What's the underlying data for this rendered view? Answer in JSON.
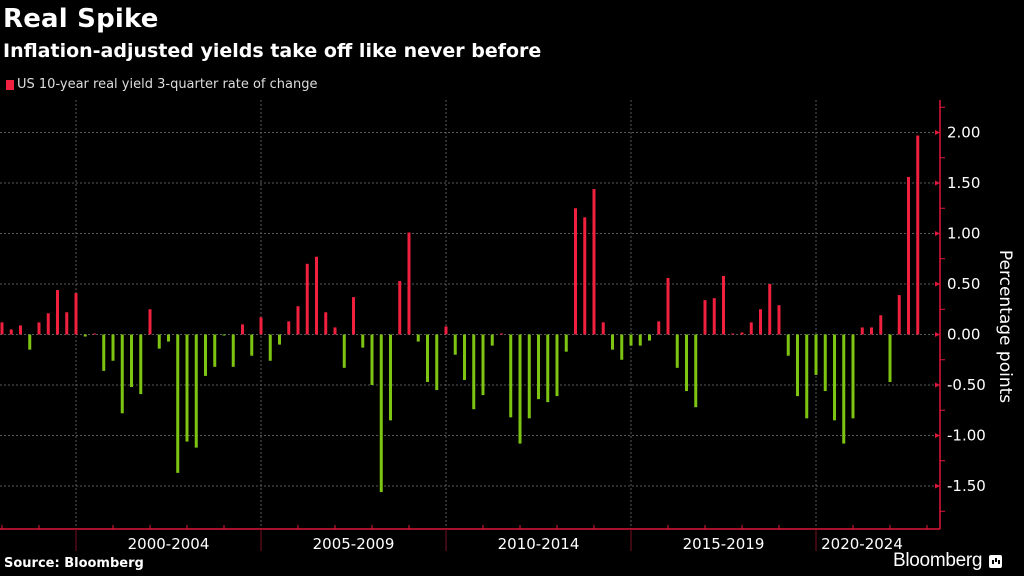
{
  "header": {
    "title": "Real Spike",
    "subtitle": "Inflation-adjusted yields take off like never before"
  },
  "footer": {
    "source": "Source: Bloomberg",
    "brand": "Bloomberg"
  },
  "colors": {
    "background": "#000000",
    "positive": "#f0213f",
    "negative": "#7ec412",
    "axis": "#e0173a",
    "grid": "#5a5a5a"
  },
  "chart_data": {
    "type": "bar",
    "title": "Real Spike",
    "subtitle": "Inflation-adjusted yields take off like never before",
    "xlabel": "",
    "ylabel": "Percentage points",
    "ylim": [
      -1.9,
      2.3
    ],
    "yticks": [
      2.0,
      1.5,
      1.0,
      0.5,
      0.0,
      -0.5,
      -1.0,
      -1.5
    ],
    "ytick_labels": [
      "2.00",
      "1.50",
      "1.00",
      "0.50",
      "0.00",
      "-0.50",
      "-1.00",
      "-1.50"
    ],
    "y_axis_side": "right",
    "x_start": "1998 Q1",
    "x_end": "2022 Q4",
    "x_frequency": "quarterly",
    "xtick_labels": [
      "2000-2004",
      "2005-2009",
      "2010-2014",
      "2015-2019",
      "2020-2024"
    ],
    "grid": true,
    "legend": {
      "position": "top-left",
      "entries": [
        "US 10-year real yield 3-quarter rate of change"
      ]
    },
    "series": [
      {
        "name": "US 10-year real yield 3-quarter rate of change",
        "color_positive": "#f0213f",
        "color_negative": "#7ec412",
        "values": [
          0.12,
          0.05,
          0.09,
          -0.15,
          0.12,
          0.21,
          0.44,
          0.22,
          0.41,
          -0.02,
          0.01,
          -0.36,
          -0.26,
          -0.78,
          -0.52,
          -0.59,
          0.25,
          -0.14,
          -0.07,
          -1.37,
          -1.06,
          -1.12,
          -0.41,
          -0.32,
          -0.01,
          -0.32,
          0.1,
          -0.21,
          0.17,
          -0.26,
          -0.1,
          0.13,
          0.28,
          0.7,
          0.77,
          0.22,
          0.07,
          -0.33,
          0.37,
          -0.13,
          -0.5,
          -1.56,
          -0.85,
          0.53,
          1.01,
          -0.07,
          -0.47,
          -0.55,
          0.08,
          -0.2,
          -0.45,
          -0.74,
          -0.6,
          -0.11,
          0.01,
          -0.82,
          -1.08,
          -0.83,
          -0.64,
          -0.67,
          -0.61,
          -0.17,
          1.25,
          1.16,
          1.44,
          0.12,
          -0.15,
          -0.25,
          -0.11,
          -0.11,
          -0.06,
          0.13,
          0.56,
          -0.33,
          -0.56,
          -0.72,
          0.34,
          0.36,
          0.58,
          0.01,
          0.02,
          0.12,
          0.25,
          0.5,
          0.29,
          -0.21,
          -0.61,
          -0.83,
          -0.4,
          -0.56,
          -0.85,
          -1.08,
          -0.83,
          0.07,
          0.07,
          0.19,
          -0.47,
          0.39,
          1.56,
          1.97
        ]
      }
    ]
  }
}
